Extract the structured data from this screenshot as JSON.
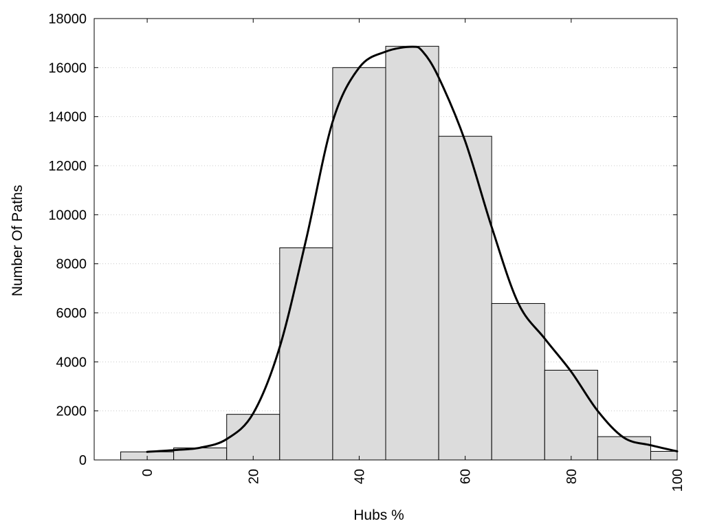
{
  "chart_data": {
    "type": "bar",
    "title": "",
    "xlabel": "Hubs %",
    "ylabel": "Number Of Paths",
    "xlim": [
      -10,
      100
    ],
    "ylim": [
      0,
      18000
    ],
    "x_ticks": [
      0,
      20,
      40,
      60,
      80,
      100
    ],
    "y_ticks": [
      0,
      2000,
      4000,
      6000,
      8000,
      10000,
      12000,
      14000,
      16000,
      18000
    ],
    "grid": "horizontal dotted",
    "bar_width": 10,
    "bars": {
      "x": [
        0,
        10,
        20,
        30,
        40,
        50,
        60,
        70,
        80,
        90,
        100
      ],
      "values": [
        330,
        490,
        1860,
        8650,
        16000,
        16870,
        13200,
        6380,
        3660,
        950,
        350
      ]
    },
    "smooth_curve": {
      "x": [
        0,
        5,
        10,
        15,
        20,
        25,
        30,
        35,
        40,
        45,
        50,
        52,
        55,
        60,
        65,
        70,
        75,
        80,
        85,
        90,
        95,
        100
      ],
      "y": [
        330,
        400,
        500,
        850,
        1900,
        4600,
        9000,
        13800,
        16000,
        16650,
        16850,
        16650,
        15600,
        13000,
        9500,
        6400,
        4950,
        3600,
        2000,
        900,
        600,
        350
      ]
    },
    "colors": {
      "bar_fill": "#dcdcdc",
      "bar_stroke": "#000000",
      "curve": "#000000"
    }
  }
}
